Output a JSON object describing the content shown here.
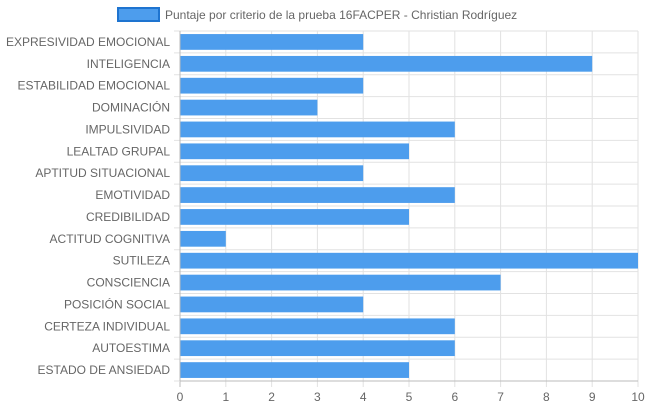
{
  "chart_data": {
    "type": "bar",
    "orientation": "horizontal",
    "categories": [
      "EXPRESIVIDAD EMOCIONAL",
      "INTELIGENCIA",
      "ESTABILIDAD EMOCIONAL",
      "DOMINACIÓN",
      "IMPULSIVIDAD",
      "LEALTAD GRUPAL",
      "APTITUD SITUACIONAL",
      "EMOTIVIDAD",
      "CREDIBILIDAD",
      "ACTITUD COGNITIVA",
      "SUTILEZA",
      "CONSCIENCIA",
      "POSICIÓN SOCIAL",
      "CERTEZA INDIVIDUAL",
      "AUTOESTIMA",
      "ESTADO DE ANSIEDAD"
    ],
    "series": [
      {
        "name": "Puntaje por criterio de la prueba 16FACPER - Christian Rodríguez",
        "values": [
          4,
          9,
          4,
          3,
          6,
          5,
          4,
          6,
          5,
          1,
          10,
          7,
          4,
          6,
          6,
          5
        ],
        "color": "#4d9ded",
        "border_color": "#1e74d0"
      }
    ],
    "xlim": [
      0,
      10
    ],
    "xticks": [
      "0",
      "1",
      "2",
      "3",
      "4",
      "5",
      "6",
      "7",
      "8",
      "9",
      "10"
    ],
    "grid": true,
    "legend_position": "top"
  }
}
